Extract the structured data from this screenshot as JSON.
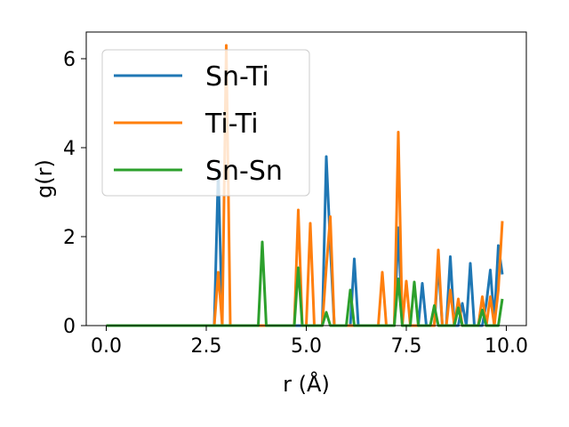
{
  "chart_data": {
    "type": "line",
    "xlabel": "r (Å)",
    "ylabel": "g(r)",
    "xlim": [
      -0.5,
      10.5
    ],
    "ylim": [
      0,
      6.6
    ],
    "xticks": [
      0.0,
      2.5,
      5.0,
      7.5,
      10.0
    ],
    "xtick_labels": [
      "0.0",
      "2.5",
      "5.0",
      "7.5",
      "10.0"
    ],
    "yticks": [
      0,
      2,
      4,
      6
    ],
    "ytick_labels": [
      "0",
      "2",
      "4",
      "6"
    ],
    "grid": false,
    "legend_position": "upper-left",
    "series": [
      {
        "name": "Sn-Ti",
        "color": "#1f77b4",
        "points": [
          [
            0,
            0
          ],
          [
            2.6,
            0
          ],
          [
            2.7,
            0
          ],
          [
            2.8,
            3.5
          ],
          [
            2.9,
            0
          ],
          [
            3.0,
            0
          ],
          [
            5.4,
            0
          ],
          [
            5.5,
            3.8
          ],
          [
            5.6,
            1.8
          ],
          [
            5.7,
            0
          ],
          [
            6.1,
            0
          ],
          [
            6.2,
            1.5
          ],
          [
            6.3,
            0
          ],
          [
            7.2,
            0
          ],
          [
            7.3,
            2.2
          ],
          [
            7.4,
            0
          ],
          [
            7.8,
            0
          ],
          [
            7.9,
            0.95
          ],
          [
            8.0,
            0
          ],
          [
            8.2,
            0
          ],
          [
            8.3,
            1.4
          ],
          [
            8.4,
            0
          ],
          [
            8.5,
            0
          ],
          [
            8.6,
            1.55
          ],
          [
            8.7,
            0
          ],
          [
            8.8,
            0
          ],
          [
            8.9,
            0.5
          ],
          [
            9.0,
            0
          ],
          [
            9.1,
            1.4
          ],
          [
            9.2,
            0
          ],
          [
            9.4,
            0
          ],
          [
            9.5,
            0.5
          ],
          [
            9.6,
            1.25
          ],
          [
            9.7,
            0.1
          ],
          [
            9.8,
            1.8
          ],
          [
            9.9,
            1.15
          ]
        ]
      },
      {
        "name": "Ti-Ti",
        "color": "#ff7f0e",
        "points": [
          [
            0,
            0
          ],
          [
            2.7,
            0
          ],
          [
            2.8,
            1.2
          ],
          [
            2.9,
            0
          ],
          [
            3.0,
            6.3
          ],
          [
            3.1,
            0
          ],
          [
            4.7,
            0
          ],
          [
            4.8,
            2.6
          ],
          [
            4.9,
            0
          ],
          [
            5.0,
            0
          ],
          [
            5.1,
            2.3
          ],
          [
            5.2,
            0
          ],
          [
            5.4,
            0
          ],
          [
            5.5,
            1.3
          ],
          [
            5.6,
            2.45
          ],
          [
            5.7,
            0
          ],
          [
            6.8,
            0
          ],
          [
            6.9,
            1.2
          ],
          [
            7.0,
            0
          ],
          [
            7.2,
            0
          ],
          [
            7.3,
            4.35
          ],
          [
            7.4,
            0
          ],
          [
            7.5,
            1.0
          ],
          [
            7.6,
            0
          ],
          [
            8.2,
            0
          ],
          [
            8.3,
            1.7
          ],
          [
            8.4,
            0
          ],
          [
            8.5,
            0
          ],
          [
            8.6,
            0.8
          ],
          [
            8.7,
            0
          ],
          [
            8.8,
            0.6
          ],
          [
            8.9,
            0
          ],
          [
            9.3,
            0
          ],
          [
            9.4,
            0.65
          ],
          [
            9.5,
            0
          ],
          [
            9.6,
            0.65
          ],
          [
            9.7,
            0
          ],
          [
            9.8,
            0.8
          ],
          [
            9.9,
            2.35
          ]
        ]
      },
      {
        "name": "Sn-Sn",
        "color": "#2ca02c",
        "points": [
          [
            0,
            0
          ],
          [
            3.8,
            0
          ],
          [
            3.9,
            1.88
          ],
          [
            4.0,
            0
          ],
          [
            4.7,
            0
          ],
          [
            4.8,
            1.3
          ],
          [
            4.9,
            0
          ],
          [
            5.4,
            0
          ],
          [
            5.5,
            0.3
          ],
          [
            5.6,
            0
          ],
          [
            6.0,
            0
          ],
          [
            6.1,
            0.8
          ],
          [
            6.2,
            0
          ],
          [
            7.2,
            0
          ],
          [
            7.3,
            1.05
          ],
          [
            7.4,
            0
          ],
          [
            7.6,
            0
          ],
          [
            7.7,
            0.98
          ],
          [
            7.8,
            0
          ],
          [
            8.1,
            0
          ],
          [
            8.2,
            0.45
          ],
          [
            8.3,
            0
          ],
          [
            8.7,
            0
          ],
          [
            8.8,
            0.4
          ],
          [
            8.9,
            0
          ],
          [
            9.3,
            0
          ],
          [
            9.4,
            0.35
          ],
          [
            9.5,
            0
          ],
          [
            9.8,
            0
          ],
          [
            9.9,
            0.6
          ]
        ]
      }
    ]
  }
}
